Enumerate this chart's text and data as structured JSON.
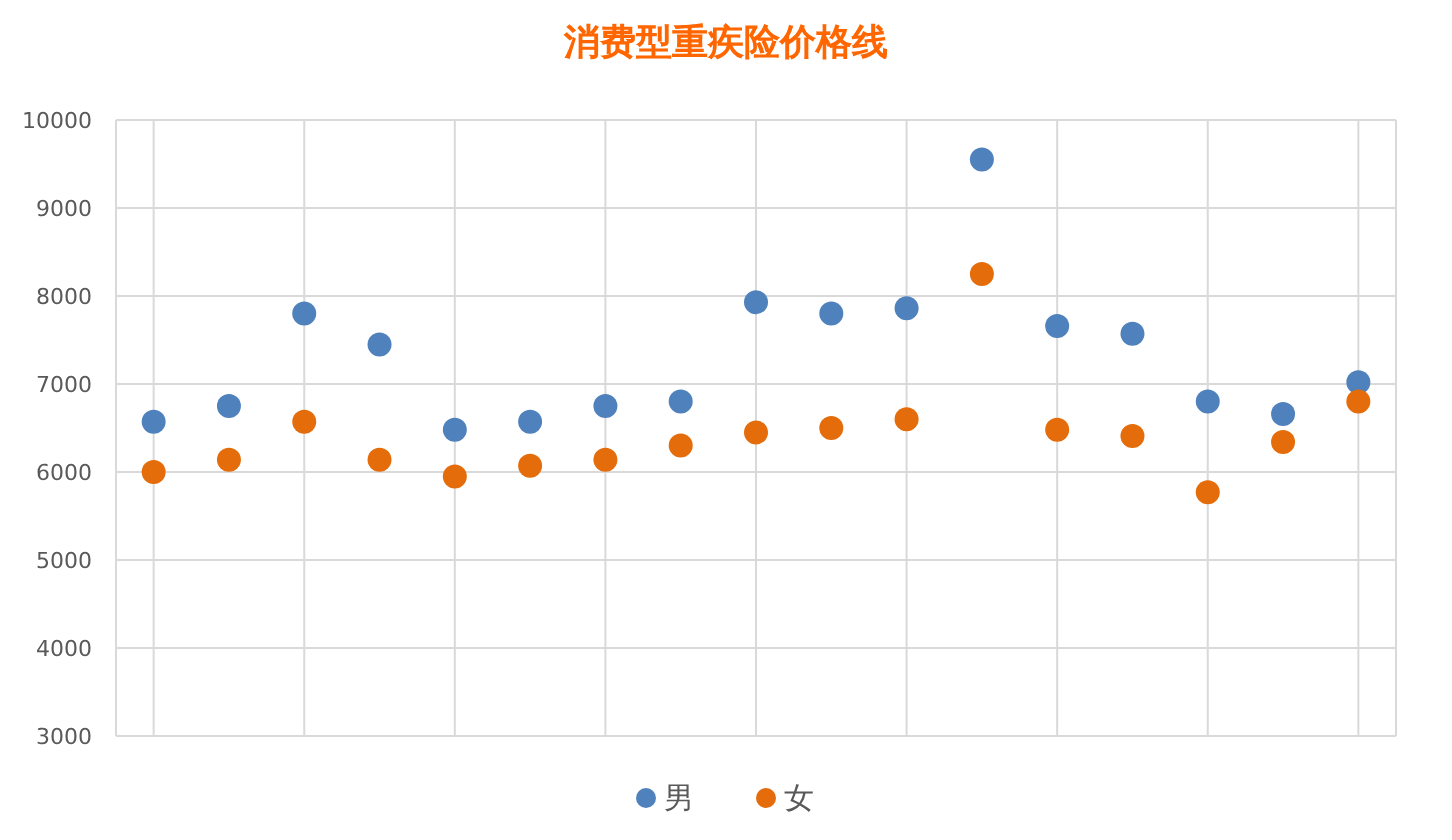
{
  "chart_data": {
    "type": "scatter",
    "title": "消费型重疾险价格线",
    "categories": [
      null,
      null,
      null,
      null,
      null,
      null,
      null,
      null,
      null,
      null,
      null,
      null,
      null,
      null,
      null,
      null,
      null
    ],
    "series": [
      {
        "name": "男",
        "color": "#4f81bd",
        "values": [
          6570,
          6750,
          7800,
          7450,
          6480,
          6570,
          6750,
          6800,
          7930,
          7800,
          7860,
          9550,
          7660,
          7570,
          6800,
          6660,
          7020
        ]
      },
      {
        "name": "女",
        "color": "#e46c0a",
        "values": [
          6000,
          6140,
          6570,
          6140,
          5950,
          6070,
          6140,
          6300,
          6450,
          6500,
          6600,
          8250,
          6480,
          6410,
          5770,
          6340,
          6800
        ]
      }
    ],
    "ylim": [
      3000,
      10000
    ],
    "yticks": [
      3000,
      4000,
      5000,
      6000,
      7000,
      8000,
      9000,
      10000
    ],
    "grid": true,
    "legend": "bottom",
    "marker": "circle"
  }
}
